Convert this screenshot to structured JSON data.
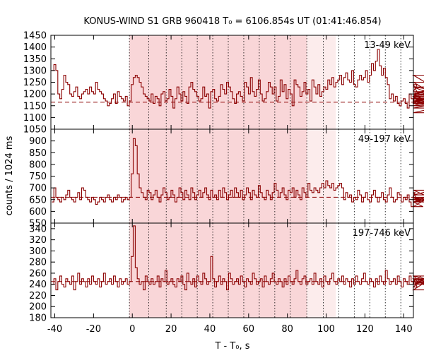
{
  "chart_data": {
    "type": "line",
    "title": "KONUS-WIND S1 GRB 960418 T₀ = 6106.854s UT (01:41:46.854)",
    "xlabel": "T - T₀, s",
    "ylabel": "counts / 1024 ms",
    "xlim": [
      -42,
      145
    ],
    "xticks": [
      -40,
      -20,
      0,
      20,
      40,
      60,
      80,
      100,
      120,
      140
    ],
    "highlight_strong": [
      -1.5,
      90
    ],
    "highlight_weak": [
      90,
      105
    ],
    "dotted_lines": [
      -1.5,
      8.5,
      17.5,
      25.5,
      33.5,
      41.5,
      49.5,
      57.5,
      65.5,
      73.5,
      81.5,
      90,
      98.5,
      106.5,
      114.5,
      122.5,
      130.5,
      138.5
    ],
    "colors": {
      "series": "#8b0000",
      "highlight_strong": "#f9d6d8",
      "highlight_weak": "#fcecec",
      "grid": "#000000"
    },
    "panels": [
      {
        "label": "13-49 keV",
        "ylim": [
          1050,
          1450
        ],
        "yticks": [
          1050,
          1100,
          1150,
          1200,
          1250,
          1300,
          1350,
          1400,
          1450
        ],
        "background": 1165,
        "x_start": -41.5,
        "dt": 1.024,
        "values": [
          1300,
          1325,
          1300,
          1200,
          1180,
          1220,
          1280,
          1250,
          1240,
          1200,
          1190,
          1210,
          1230,
          1190,
          1180,
          1200,
          1210,
          1220,
          1200,
          1230,
          1210,
          1200,
          1250,
          1220,
          1210,
          1200,
          1180,
          1170,
          1150,
          1160,
          1180,
          1200,
          1160,
          1210,
          1190,
          1180,
          1170,
          1190,
          1150,
          1170,
          1240,
          1270,
          1280,
          1270,
          1250,
          1230,
          1200,
          1190,
          1180,
          1170,
          1200,
          1160,
          1190,
          1180,
          1150,
          1200,
          1210,
          1170,
          1180,
          1220,
          1190,
          1140,
          1180,
          1230,
          1200,
          1170,
          1210,
          1190,
          1160,
          1230,
          1250,
          1220,
          1210,
          1190,
          1170,
          1180,
          1230,
          1190,
          1200,
          1140,
          1210,
          1220,
          1180,
          1170,
          1190,
          1240,
          1220,
          1200,
          1250,
          1230,
          1210,
          1180,
          1160,
          1200,
          1210,
          1190,
          1170,
          1250,
          1230,
          1200,
          1270,
          1210,
          1190,
          1220,
          1260,
          1200,
          1170,
          1180,
          1210,
          1250,
          1230,
          1200,
          1230,
          1170,
          1190,
          1260,
          1210,
          1240,
          1180,
          1220,
          1200,
          1150,
          1260,
          1240,
          1230,
          1190,
          1210,
          1250,
          1200,
          1220,
          1170,
          1260,
          1230,
          1200,
          1240,
          1190,
          1210,
          1230,
          1220,
          1260,
          1240,
          1270,
          1230,
          1250,
          1260,
          1280,
          1240,
          1270,
          1290,
          1260,
          1250,
          1300,
          1240,
          1230,
          1260,
          1280,
          1260,
          1270,
          1300,
          1250,
          1280,
          1330,
          1300,
          1340,
          1390,
          1320,
          1280,
          1310,
          1270,
          1240,
          1180,
          1200,
          1170,
          1190,
          1160,
          1150,
          1170,
          1180,
          1160,
          1140,
          1200,
          1180,
          1160,
          1210,
          1240,
          1190,
          1160,
          1180,
          1200,
          1170,
          1150,
          1180,
          1160,
          1250,
          1190,
          1160,
          1170,
          1200,
          1230,
          1210,
          1190,
          1280,
          1180,
          1160,
          1190,
          1230,
          1150,
          1180,
          1200,
          1170,
          1140,
          1190,
          1120,
          1180,
          1170,
          1200
        ]
      },
      {
        "label": "49-197 keV",
        "ylim": [
          550,
          950
        ],
        "yticks": [
          550,
          600,
          650,
          700,
          750,
          800,
          850,
          900
        ],
        "background": 660,
        "x_start": -41.5,
        "dt": 1.024,
        "values": [
          640,
          700,
          660,
          650,
          640,
          660,
          650,
          670,
          690,
          660,
          650,
          640,
          660,
          680,
          650,
          700,
          690,
          660,
          650,
          640,
          660,
          650,
          630,
          640,
          660,
          650,
          640,
          660,
          670,
          650,
          640,
          660,
          650,
          670,
          660,
          640,
          650,
          660,
          650,
          660,
          760,
          910,
          880,
          760,
          700,
          680,
          660,
          650,
          690,
          680,
          650,
          670,
          690,
          660,
          640,
          670,
          700,
          680,
          650,
          660,
          690,
          670,
          640,
          660,
          700,
          680,
          650,
          690,
          670,
          650,
          700,
          680,
          650,
          670,
          690,
          660,
          680,
          700,
          670,
          650,
          690,
          660,
          670,
          650,
          690,
          660,
          700,
          680,
          650,
          670,
          690,
          660,
          700,
          680,
          660,
          690,
          650,
          670,
          700,
          680,
          650,
          690,
          670,
          660,
          710,
          680,
          660,
          650,
          690,
          670,
          650,
          680,
          720,
          690,
          660,
          680,
          700,
          670,
          650,
          690,
          680,
          700,
          660,
          690,
          670,
          650,
          700,
          680,
          660,
          720,
          690,
          680,
          700,
          690,
          680,
          700,
          720,
          700,
          730,
          710,
          700,
          720,
          690,
          700,
          710,
          720,
          700,
          650,
          680,
          660,
          670,
          640,
          660,
          650,
          690,
          670,
          640,
          660,
          680,
          650,
          640,
          670,
          690,
          660,
          640,
          660,
          680,
          650,
          640,
          670,
          700,
          660,
          640,
          650,
          680,
          670,
          640,
          660,
          650,
          670,
          640,
          620,
          660,
          680,
          650,
          660,
          640,
          620,
          650,
          660,
          640,
          670,
          690,
          650,
          640,
          660,
          640
        ]
      },
      {
        "label": "197-746 keV",
        "ylim": [
          180,
          350
        ],
        "yticks": [
          180,
          200,
          220,
          240,
          260,
          280,
          300,
          320,
          340
        ],
        "background": 245,
        "x_start": -41.5,
        "dt": 1.024,
        "values": [
          240,
          250,
          230,
          245,
          255,
          240,
          235,
          250,
          245,
          240,
          255,
          230,
          245,
          260,
          240,
          250,
          245,
          235,
          250,
          240,
          255,
          245,
          240,
          250,
          235,
          245,
          260,
          240,
          245,
          250,
          240,
          255,
          245,
          235,
          250,
          240,
          245,
          250,
          240,
          245,
          290,
          345,
          270,
          250,
          240,
          245,
          230,
          255,
          245,
          240,
          250,
          240,
          245,
          255,
          235,
          250,
          245,
          265,
          240,
          245,
          250,
          240,
          235,
          250,
          245,
          255,
          240,
          230,
          260,
          245,
          240,
          250,
          235,
          255,
          245,
          240,
          260,
          250,
          240,
          245,
          290,
          250,
          235,
          245,
          255,
          240,
          250,
          245,
          230,
          260,
          250,
          240,
          245,
          250,
          240,
          255,
          245,
          235,
          250,
          245,
          240,
          260,
          250,
          240,
          245,
          250,
          235,
          255,
          245,
          240,
          250,
          260,
          245,
          240,
          250,
          245,
          235,
          250,
          240,
          255,
          245,
          240,
          250,
          265,
          245,
          240,
          250,
          255,
          240,
          245,
          250,
          240,
          260,
          245,
          240,
          250,
          235,
          255,
          245,
          240,
          250,
          260,
          245,
          240,
          250,
          245,
          255,
          240,
          250,
          245,
          235,
          250,
          240,
          255,
          245,
          240,
          250,
          260,
          245,
          240,
          250,
          245,
          235,
          250,
          240,
          255,
          245,
          240,
          265,
          250,
          240,
          245,
          250,
          240,
          255,
          245,
          235,
          250,
          245,
          240,
          255,
          245,
          240,
          250,
          235,
          245,
          255,
          240,
          250,
          245,
          240,
          250,
          230,
          255,
          245,
          240,
          250,
          245
        ]
      }
    ]
  }
}
